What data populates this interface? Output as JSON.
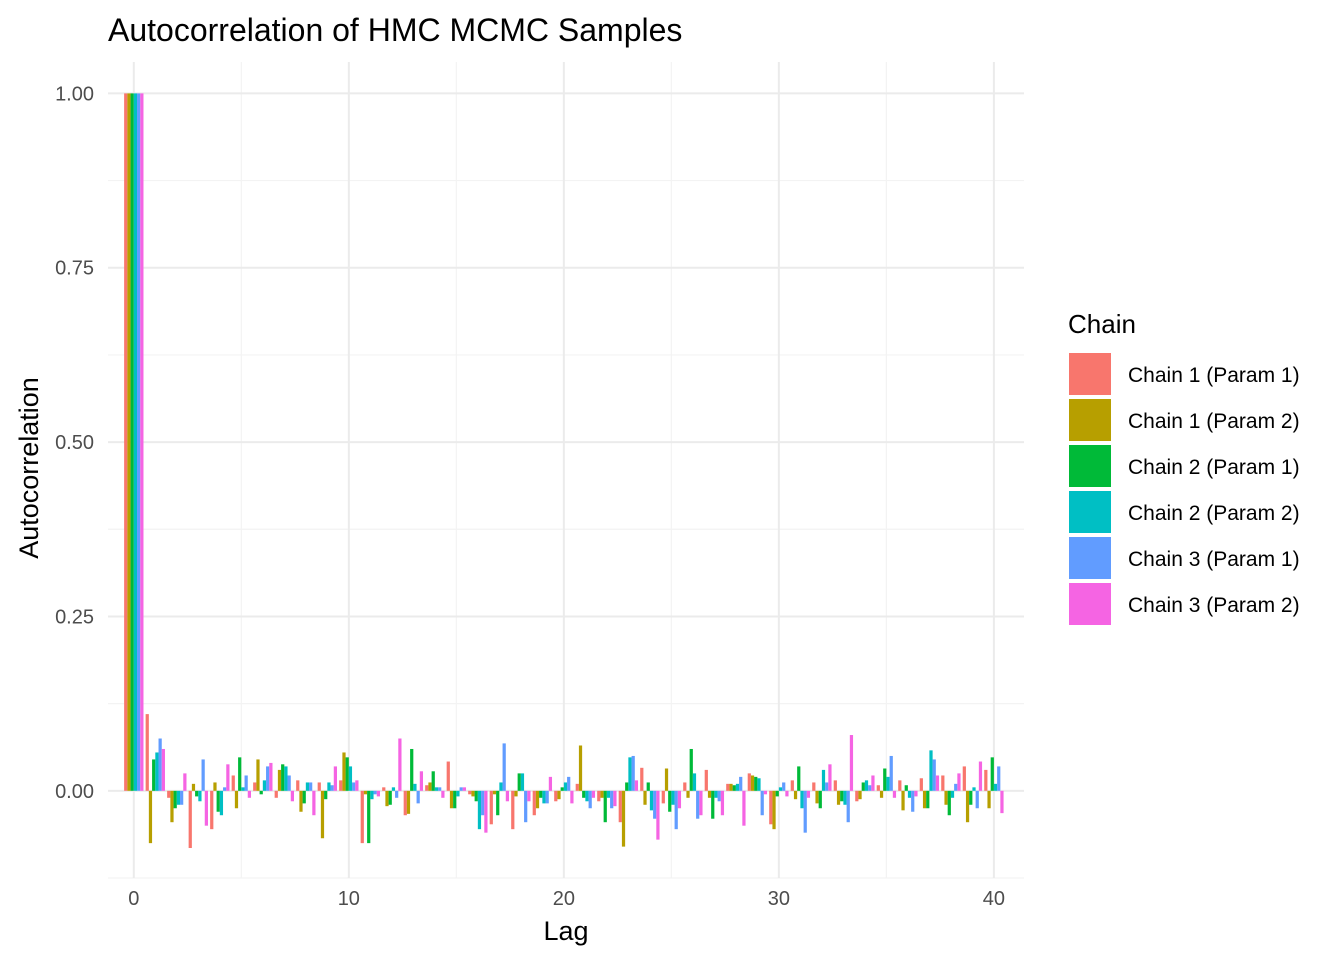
{
  "chart_data": {
    "type": "bar",
    "title": "Autocorrelation of HMC MCMC Samples",
    "xlabel": "Lag",
    "ylabel": "Autocorrelation",
    "xlim": [
      -1.2,
      41.4
    ],
    "ylim": [
      -0.125,
      1.045
    ],
    "x_ticks": [
      0,
      10,
      20,
      30,
      40
    ],
    "x_tick_labels": [
      "0",
      "10",
      "20",
      "30",
      "40"
    ],
    "y_ticks": [
      0.0,
      0.25,
      0.5,
      0.75,
      1.0
    ],
    "y_tick_labels": [
      "0.00",
      "0.25",
      "0.50",
      "0.75",
      "1.00"
    ],
    "grid": true,
    "legend": {
      "title": "Chain",
      "placement": "right"
    },
    "lags": [
      0,
      1,
      2,
      3,
      4,
      5,
      6,
      7,
      8,
      9,
      10,
      11,
      12,
      13,
      14,
      15,
      16,
      17,
      18,
      19,
      20,
      21,
      22,
      23,
      24,
      25,
      26,
      27,
      28,
      29,
      30,
      31,
      32,
      33,
      34,
      35,
      36,
      37,
      38,
      39,
      40
    ],
    "series": [
      {
        "name": "Chain 1 (Param 1)",
        "color": "#F8766D",
        "values": [
          1.0,
          0.11,
          -0.01,
          -0.082,
          -0.055,
          0.022,
          0.012,
          -0.01,
          0.015,
          0.012,
          0.015,
          -0.075,
          0.005,
          -0.035,
          0.008,
          0.042,
          -0.005,
          -0.048,
          -0.055,
          -0.035,
          -0.015,
          0.01,
          -0.015,
          -0.045,
          0.033,
          -0.018,
          0.012,
          0.03,
          0.01,
          0.025,
          -0.048,
          0.015,
          0.012,
          0.015,
          -0.015,
          0.008,
          0.015,
          0.018,
          0.022,
          0.035,
          0.03
        ]
      },
      {
        "name": "Chain 1 (Param 2)",
        "color": "#B79F00",
        "values": [
          1.0,
          -0.075,
          -0.045,
          0.01,
          0.012,
          -0.025,
          0.045,
          0.03,
          -0.03,
          -0.068,
          0.055,
          -0.005,
          -0.022,
          -0.033,
          0.012,
          -0.025,
          -0.008,
          -0.005,
          -0.008,
          -0.025,
          -0.012,
          0.065,
          -0.01,
          -0.08,
          -0.02,
          0.032,
          -0.01,
          -0.01,
          0.01,
          0.022,
          -0.055,
          -0.012,
          -0.018,
          -0.02,
          -0.012,
          -0.01,
          -0.028,
          -0.025,
          -0.02,
          -0.045,
          -0.025
        ]
      },
      {
        "name": "Chain 2 (Param 1)",
        "color": "#00BA38",
        "values": [
          1.0,
          0.045,
          -0.025,
          -0.008,
          -0.03,
          0.048,
          -0.005,
          0.038,
          -0.018,
          -0.012,
          0.048,
          -0.075,
          -0.02,
          0.06,
          0.028,
          -0.025,
          -0.015,
          -0.035,
          0.025,
          -0.01,
          0.005,
          -0.01,
          -0.045,
          0.012,
          0.012,
          -0.03,
          0.06,
          -0.04,
          0.008,
          0.02,
          -0.008,
          0.035,
          -0.025,
          -0.015,
          0.012,
          0.032,
          0.008,
          -0.025,
          -0.035,
          -0.02,
          0.048
        ]
      },
      {
        "name": "Chain 2 (Param 2)",
        "color": "#00BFC4",
        "values": [
          1.0,
          0.055,
          -0.02,
          -0.015,
          -0.035,
          0.005,
          0.015,
          0.035,
          0.012,
          0.012,
          0.035,
          -0.012,
          0.005,
          0.01,
          0.005,
          -0.008,
          -0.055,
          0.012,
          0.025,
          -0.018,
          0.012,
          -0.015,
          -0.01,
          0.048,
          -0.028,
          -0.02,
          0.025,
          -0.01,
          0.01,
          0.018,
          0.005,
          -0.025,
          0.03,
          -0.02,
          0.015,
          0.02,
          -0.01,
          0.058,
          -0.01,
          0.005,
          0.01
        ]
      },
      {
        "name": "Chain 3 (Param 1)",
        "color": "#619CFF",
        "values": [
          1.0,
          0.075,
          -0.02,
          0.045,
          0.005,
          0.022,
          0.035,
          0.022,
          0.012,
          0.008,
          0.012,
          -0.005,
          -0.01,
          -0.018,
          0.005,
          0.005,
          -0.035,
          0.068,
          -0.045,
          -0.018,
          0.02,
          -0.025,
          -0.025,
          0.05,
          -0.04,
          -0.055,
          -0.04,
          -0.015,
          0.02,
          -0.035,
          0.012,
          -0.06,
          0.012,
          -0.045,
          0.008,
          0.05,
          -0.03,
          0.045,
          0.01,
          -0.025,
          0.035
        ]
      },
      {
        "name": "Chain 3 (Param 2)",
        "color": "#F564E3",
        "values": [
          1.0,
          0.06,
          0.025,
          -0.05,
          0.038,
          -0.01,
          0.04,
          -0.015,
          -0.035,
          0.035,
          0.015,
          -0.008,
          0.075,
          0.028,
          -0.01,
          0.005,
          -0.06,
          -0.015,
          -0.015,
          0.02,
          -0.018,
          -0.01,
          -0.022,
          0.015,
          -0.07,
          -0.025,
          -0.035,
          -0.035,
          -0.05,
          -0.005,
          -0.008,
          -0.01,
          0.038,
          0.08,
          0.022,
          -0.01,
          -0.008,
          0.022,
          0.025,
          0.042,
          -0.032
        ]
      }
    ]
  }
}
